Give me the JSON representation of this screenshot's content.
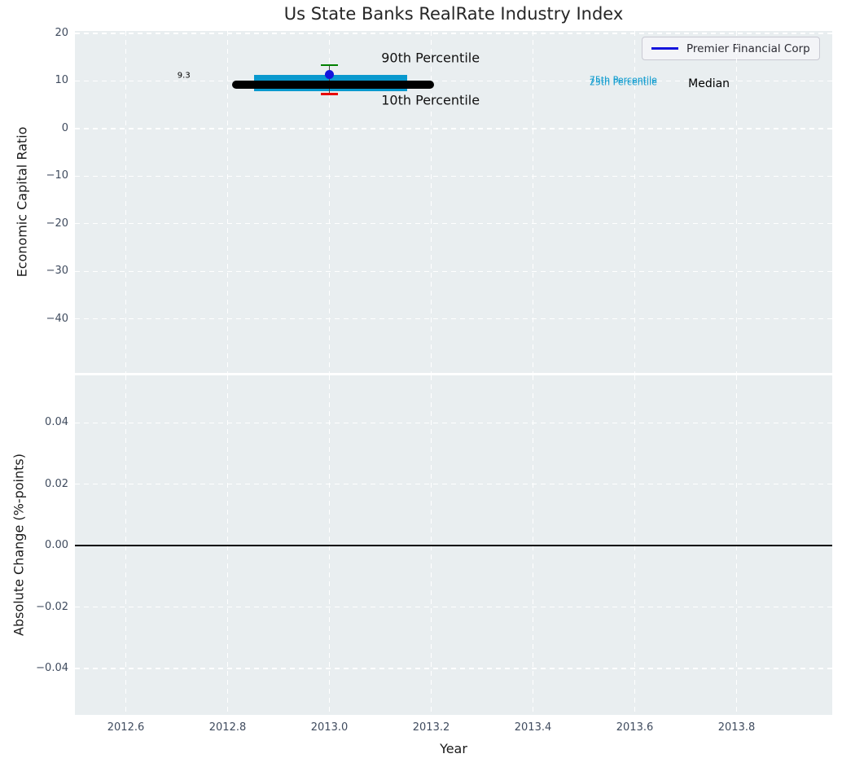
{
  "chart_data": [
    {
      "id": "economic-capital-ratio-panel",
      "type": "box-timeline",
      "title": "Us State Banks RealRate Industry Index",
      "ylabel": "Economic Capital Ratio",
      "xlim": [
        2012.5,
        2013.988
      ],
      "ylim": [
        -51.3,
        20.5
      ],
      "grid": "white-dashed",
      "yticks": [
        {
          "v": 20,
          "label": "20"
        },
        {
          "v": 10,
          "label": "10"
        },
        {
          "v": 0,
          "label": "0"
        },
        {
          "v": -10,
          "label": "−10"
        },
        {
          "v": -20,
          "label": "−20"
        },
        {
          "v": -30,
          "label": "−30"
        },
        {
          "v": -40,
          "label": "−40"
        }
      ],
      "industry": {
        "x": 2013.0,
        "median": 9.3,
        "p25": 7.9,
        "p75": 11.3,
        "p10": 7.2,
        "p90": 13.3,
        "median_span": [
          2012.808,
          2013.205
        ],
        "band_span": [
          2012.852,
          2013.152
        ],
        "colors": {
          "median": "#000000",
          "band": "#0999ce",
          "p90_cap": "#008000",
          "p10_cap": "#e80000",
          "whisker": "#444444"
        }
      },
      "company_point": {
        "name": "Premier Financial Corp",
        "x": 2013.0,
        "y": 11.3,
        "color": "#1414dd"
      },
      "legend": {
        "position": "upper right",
        "entries": [
          {
            "label": "Premier Financial Corp",
            "color": "#1414dd",
            "type": "line"
          }
        ]
      },
      "annotations": [
        {
          "text": "9.3",
          "x": 2012.714,
          "y": 11.15,
          "size": 10,
          "color": "#000000",
          "anchor": "center"
        },
        {
          "text": "90th Percentile",
          "x": 2013.102,
          "y": 14.8,
          "size": 16,
          "color": "#111111",
          "anchor": "left"
        },
        {
          "text": "10th Percentile",
          "x": 2013.102,
          "y": 6.0,
          "size": 16,
          "color": "#111111",
          "anchor": "left"
        },
        {
          "text": "75th Percentile",
          "x": 2013.511,
          "y": 10.3,
          "size": 11,
          "color": "#0999ce",
          "anchor": "left"
        },
        {
          "text": "25th Percentile",
          "x": 2013.511,
          "y": 9.7,
          "size": 11,
          "color": "#0999ce",
          "anchor": "left"
        },
        {
          "text": "Median",
          "x": 2013.705,
          "y": 9.4,
          "size": 14,
          "color": "#000000",
          "anchor": "left"
        }
      ]
    },
    {
      "id": "absolute-change-panel",
      "type": "line",
      "ylabel": "Absolute Change (%-points)",
      "xlabel": "Year",
      "xlim": [
        2012.5,
        2013.988
      ],
      "ylim": [
        -0.0551,
        0.0554
      ],
      "grid": "white-dashed",
      "yticks": [
        {
          "v": 0.04,
          "label": "0.04"
        },
        {
          "v": 0.02,
          "label": "0.02"
        },
        {
          "v": 0.0,
          "label": "0.00"
        },
        {
          "v": -0.02,
          "label": "−0.02"
        },
        {
          "v": -0.04,
          "label": "−0.04"
        }
      ],
      "xticks": [
        {
          "v": 2012.6,
          "label": "2012.6"
        },
        {
          "v": 2012.8,
          "label": "2012.8"
        },
        {
          "v": 2013.0,
          "label": "2013.0"
        },
        {
          "v": 2013.2,
          "label": "2013.2"
        },
        {
          "v": 2013.4,
          "label": "2013.4"
        },
        {
          "v": 2013.6,
          "label": "2013.6"
        },
        {
          "v": 2013.8,
          "label": "2013.8"
        }
      ],
      "zero_line": {
        "y": 0.0,
        "color": "#000000"
      },
      "series": []
    }
  ]
}
